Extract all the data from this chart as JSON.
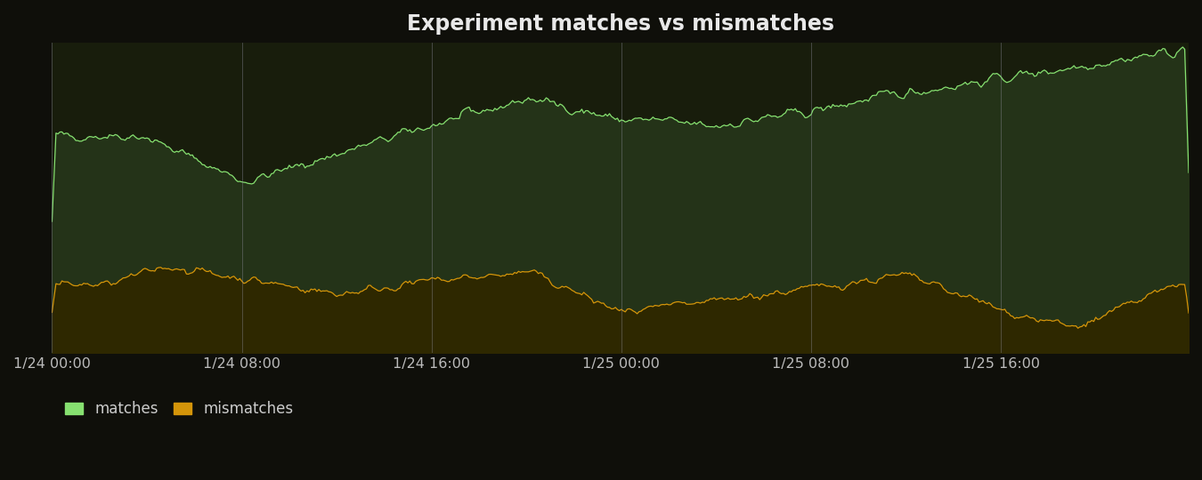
{
  "title": "Experiment matches vs mismatches",
  "background_color": "#0f0f0a",
  "plot_bg_color": "#181d0c",
  "grid_color": "#9090a0",
  "title_color": "#e8e8e8",
  "matches_color": "#86e070",
  "matches_fill": "#243318",
  "mismatches_color": "#d4950a",
  "mismatches_fill": "#2e2800",
  "x_tick_labels": [
    "1/24 00:00",
    "1/24 08:00",
    "1/24 16:00",
    "1/25 00:00",
    "1/25 08:00",
    "1/25 16:00"
  ],
  "x_tick_positions": [
    0,
    96,
    192,
    288,
    384,
    480
  ],
  "n_points": 576,
  "legend_matches": "matches",
  "legend_mismatches": "mismatches",
  "ylim_max": 10000,
  "seed": 42
}
